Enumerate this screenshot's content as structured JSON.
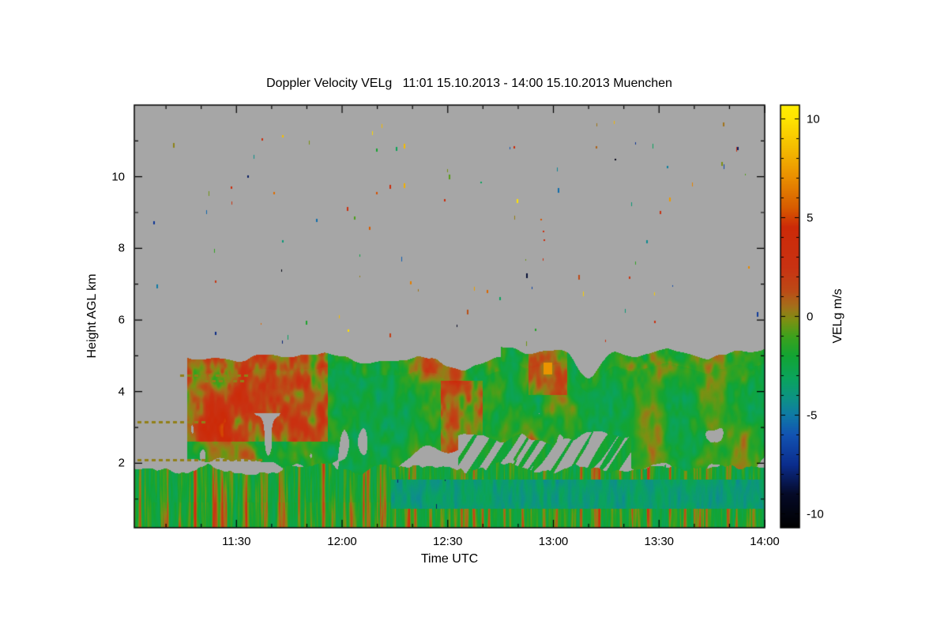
{
  "figure": {
    "background": "#ffffff"
  },
  "chart_data": {
    "type": "heatmap",
    "title": "Doppler Velocity VELg   11:01 15.10.2013 - 14:00 15.10.2013 Muenchen",
    "xlabel": "Time UTC",
    "ylabel": "Height AGL km",
    "colorbar_label": "VELg m/s",
    "x_range_minutes": [
      661,
      840
    ],
    "x_ticks": [
      {
        "label": "11:30",
        "minutes": 690
      },
      {
        "label": "12:00",
        "minutes": 720
      },
      {
        "label": "12:30",
        "minutes": 750
      },
      {
        "label": "13:00",
        "minutes": 780
      },
      {
        "label": "13:30",
        "minutes": 810
      },
      {
        "label": "14:00",
        "minutes": 840
      }
    ],
    "x_minor_tick_interval_minutes": 10,
    "y_range_km": [
      0.2,
      12.0
    ],
    "y_ticks": [
      {
        "label": "2",
        "km": 2
      },
      {
        "label": "4",
        "km": 4
      },
      {
        "label": "6",
        "km": 6
      },
      {
        "label": "8",
        "km": 8
      },
      {
        "label": "10",
        "km": 10
      }
    ],
    "y_minor_tick_interval_km": 1,
    "value_range": [
      -10.7,
      10.7
    ],
    "colorbar_ticks": [
      {
        "label": "10",
        "value": 10
      },
      {
        "label": "5",
        "value": 5
      },
      {
        "label": "0",
        "value": 0
      },
      {
        "label": "-5",
        "value": -5
      },
      {
        "label": "-10",
        "value": -10
      }
    ],
    "no_data_color": "#a6a6a6",
    "colormap_stops": [
      [
        -10.7,
        "#000000"
      ],
      [
        -9.0,
        "#050a28"
      ],
      [
        -7.5,
        "#0b2d8e"
      ],
      [
        -6.0,
        "#1253b2"
      ],
      [
        -5.0,
        "#0f7aa6"
      ],
      [
        -4.2,
        "#0d9187"
      ],
      [
        -3.2,
        "#0aa35f"
      ],
      [
        -2.0,
        "#12a433"
      ],
      [
        -1.0,
        "#3ea21c"
      ],
      [
        -0.2,
        "#7d9013"
      ],
      [
        0.5,
        "#a4701a"
      ],
      [
        1.3,
        "#bd4a16"
      ],
      [
        2.5,
        "#c93212"
      ],
      [
        4.5,
        "#cc2a08"
      ],
      [
        5.5,
        "#d85c00"
      ],
      [
        7.0,
        "#e98e00"
      ],
      [
        8.5,
        "#f4bc00"
      ],
      [
        10.0,
        "#ffe400"
      ],
      [
        10.7,
        "#ffee00"
      ]
    ],
    "features": {
      "no_data_above_km": 5.3,
      "cloud_layer": {
        "t_start_min": 676,
        "top_km_mean": 4.78,
        "top_km_jitter": 0.5,
        "top_rise_after_min": 765,
        "top_rise_km": 0.3,
        "notch": {
          "center_min": 790,
          "depth_km": 0.55,
          "width_min": 9
        },
        "base_km_mean": 2.0,
        "base_km_jitter": 1.0,
        "raised_base": {
          "t_min": [
            753,
            802
          ],
          "base_km": 2.7
        },
        "v_background": -2.5,
        "v_red_patch_zones": [
          {
            "t_min": [
              661,
              716
            ],
            "h_km": [
              2.6,
              5.5
            ],
            "dv": 2.6
          },
          {
            "t_min": [
              748,
              760
            ],
            "h_km": [
              2.2,
              4.3
            ],
            "dv": 2.4
          },
          {
            "t_min": [
              773,
              784
            ],
            "h_km": [
              3.9,
              5.6
            ],
            "dv": 2.0
          }
        ]
      },
      "surface_layer": {
        "top_km_mean": 1.85,
        "top_km_jitter": 0.3,
        "v_background": -2.6,
        "v_red_streak_max": 4.4
      },
      "teal_band": {
        "t_start_min": 726,
        "h_km": [
          0.72,
          1.55
        ],
        "v": -3.6
      },
      "dark_blue_streaks": {
        "t_min": [
          728,
          753
        ],
        "v": -8.0
      },
      "fall_streaks": {
        "t_min": [
          753,
          812
        ],
        "h_km": [
          1.5,
          3.2
        ],
        "v": -2.0
      },
      "orange_patch": {
        "t_min": [
          777.2,
          779.6
        ],
        "h_km": [
          4.48,
          4.8
        ],
        "v": 9.5
      },
      "clutter_dash_lines": [
        {
          "h_km": 4.45,
          "t_min": [
            674,
            694
          ]
        },
        {
          "h_km": 4.3,
          "t_min": [
            681,
            693
          ]
        },
        {
          "h_km": 3.15,
          "t_min": [
            662,
            681
          ]
        },
        {
          "h_km": 2.1,
          "t_min": [
            662,
            697
          ]
        }
      ],
      "speckle_echoes": {
        "count": 95,
        "h_km": [
          5.4,
          11.9
        ],
        "v_range": [
          -10,
          10
        ]
      }
    }
  }
}
